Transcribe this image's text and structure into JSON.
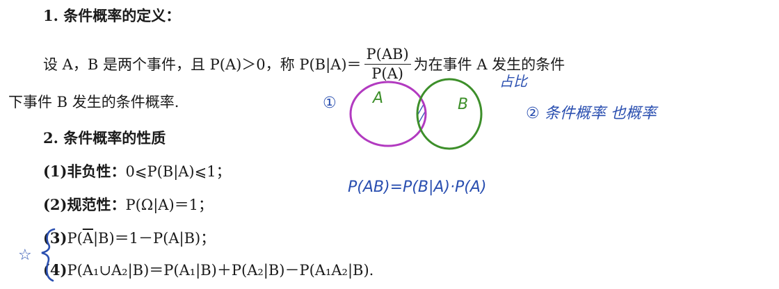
{
  "section1": {
    "title": "1. 条件概率的定义：",
    "def_line1_prefix": "设 A，B 是两个事件，且 P(A)＞0，称 P(B|A)＝",
    "frac_num": "P(AB)",
    "frac_den": "P(A)",
    "def_line1_suffix": "为在事件 A 发生的条件",
    "def_line2": "下事件 B 发生的条件概率."
  },
  "section2": {
    "title": "2. 条件概率的性质",
    "properties": [
      {
        "label": "(1)非负性：",
        "formula": "0⩽P(B|A)⩽1；"
      },
      {
        "label": "(2)规范性：",
        "formula": "P(Ω|A)＝1；"
      },
      {
        "label": "(3)",
        "formula_pre": "P(",
        "formula_bar": "A",
        "formula_post": "|B)＝1－P(A|B)；"
      },
      {
        "label": "(4)",
        "formula": "P(A₁∪A₂|B)＝P(A₁|B)＋P(A₂|B)－P(A₁A₂|B)."
      }
    ]
  },
  "annotations": {
    "venn_label_a": "A",
    "venn_label_b": "B",
    "note_1": "①",
    "note_2": "② 条件概率 也概率",
    "note_ratio": "占比",
    "formula_hw": "P(AB)=P(B|A)·P(A)",
    "star_mark": "☆",
    "colors": {
      "blue": "#2a4fb0",
      "purple": "#b23ac0",
      "green": "#3d8f2a"
    }
  }
}
